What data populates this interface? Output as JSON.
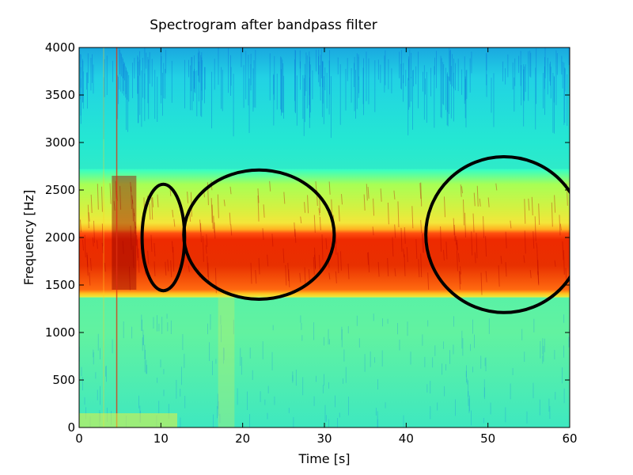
{
  "chart_data": {
    "type": "heatmap",
    "title": "Spectrogram after bandpass filter",
    "xlabel": "Time [s]",
    "ylabel": "Frequency [Hz]",
    "xlim": [
      0,
      60
    ],
    "ylim": [
      0,
      4000
    ],
    "xticks": [
      0,
      10,
      20,
      30,
      40,
      50,
      60
    ],
    "yticks": [
      0,
      500,
      1000,
      1500,
      2000,
      2500,
      3000,
      3500,
      4000
    ],
    "colormap": "jet",
    "passband_hz": [
      1450,
      2600
    ],
    "grid": false,
    "highlight_ellipses": [
      {
        "center_time": 10.3,
        "center_freq": 2000,
        "time_halfwidth": 2.6,
        "freq_halfwidth": 560
      },
      {
        "center_time": 22.0,
        "center_freq": 2030,
        "time_halfwidth": 9.2,
        "freq_halfwidth": 680
      },
      {
        "center_time": 52.0,
        "center_freq": 2030,
        "time_halfwidth": 9.6,
        "freq_halfwidth": 820
      }
    ],
    "ellipse_color": "#000000"
  }
}
